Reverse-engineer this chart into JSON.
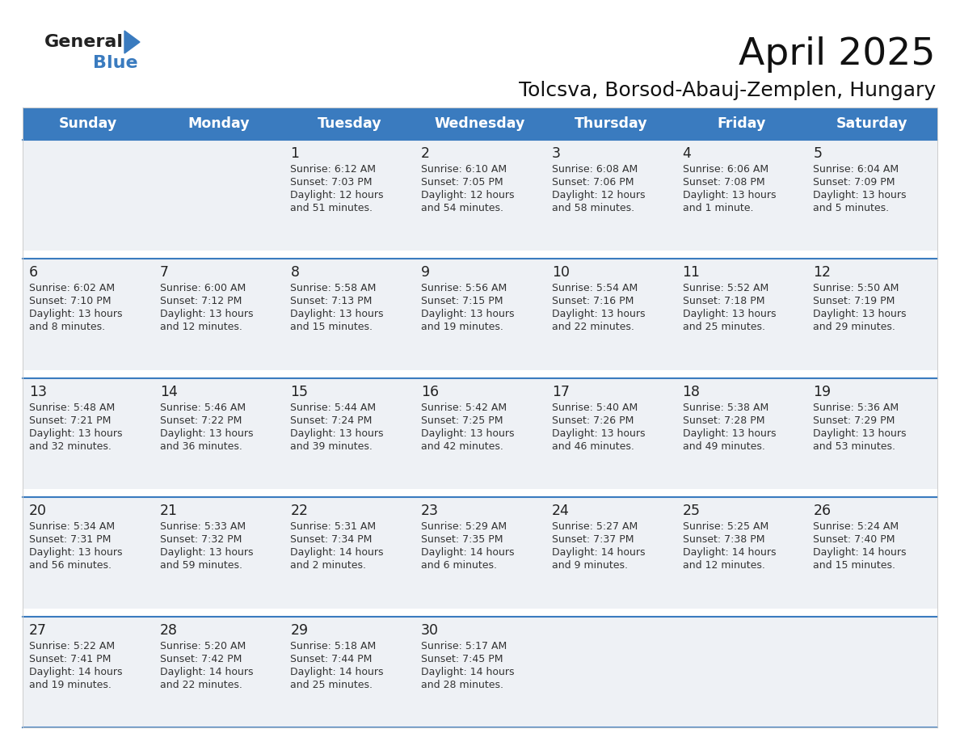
{
  "title": "April 2025",
  "subtitle": "Tolcsva, Borsod-Abauj-Zemplen, Hungary",
  "days_of_week": [
    "Sunday",
    "Monday",
    "Tuesday",
    "Wednesday",
    "Thursday",
    "Friday",
    "Saturday"
  ],
  "header_bg": "#3a7bbf",
  "header_text": "#ffffff",
  "row_bg": "#eef1f5",
  "divider_color": "#3a7bbf",
  "day_number_color": "#222222",
  "cell_text_color": "#333333",
  "calendar": [
    [
      {
        "day": "",
        "sunrise": "",
        "sunset": "",
        "daylight": ""
      },
      {
        "day": "",
        "sunrise": "",
        "sunset": "",
        "daylight": ""
      },
      {
        "day": "1",
        "sunrise": "Sunrise: 6:12 AM",
        "sunset": "Sunset: 7:03 PM",
        "daylight": "Daylight: 12 hours\nand 51 minutes."
      },
      {
        "day": "2",
        "sunrise": "Sunrise: 6:10 AM",
        "sunset": "Sunset: 7:05 PM",
        "daylight": "Daylight: 12 hours\nand 54 minutes."
      },
      {
        "day": "3",
        "sunrise": "Sunrise: 6:08 AM",
        "sunset": "Sunset: 7:06 PM",
        "daylight": "Daylight: 12 hours\nand 58 minutes."
      },
      {
        "day": "4",
        "sunrise": "Sunrise: 6:06 AM",
        "sunset": "Sunset: 7:08 PM",
        "daylight": "Daylight: 13 hours\nand 1 minute."
      },
      {
        "day": "5",
        "sunrise": "Sunrise: 6:04 AM",
        "sunset": "Sunset: 7:09 PM",
        "daylight": "Daylight: 13 hours\nand 5 minutes."
      }
    ],
    [
      {
        "day": "6",
        "sunrise": "Sunrise: 6:02 AM",
        "sunset": "Sunset: 7:10 PM",
        "daylight": "Daylight: 13 hours\nand 8 minutes."
      },
      {
        "day": "7",
        "sunrise": "Sunrise: 6:00 AM",
        "sunset": "Sunset: 7:12 PM",
        "daylight": "Daylight: 13 hours\nand 12 minutes."
      },
      {
        "day": "8",
        "sunrise": "Sunrise: 5:58 AM",
        "sunset": "Sunset: 7:13 PM",
        "daylight": "Daylight: 13 hours\nand 15 minutes."
      },
      {
        "day": "9",
        "sunrise": "Sunrise: 5:56 AM",
        "sunset": "Sunset: 7:15 PM",
        "daylight": "Daylight: 13 hours\nand 19 minutes."
      },
      {
        "day": "10",
        "sunrise": "Sunrise: 5:54 AM",
        "sunset": "Sunset: 7:16 PM",
        "daylight": "Daylight: 13 hours\nand 22 minutes."
      },
      {
        "day": "11",
        "sunrise": "Sunrise: 5:52 AM",
        "sunset": "Sunset: 7:18 PM",
        "daylight": "Daylight: 13 hours\nand 25 minutes."
      },
      {
        "day": "12",
        "sunrise": "Sunrise: 5:50 AM",
        "sunset": "Sunset: 7:19 PM",
        "daylight": "Daylight: 13 hours\nand 29 minutes."
      }
    ],
    [
      {
        "day": "13",
        "sunrise": "Sunrise: 5:48 AM",
        "sunset": "Sunset: 7:21 PM",
        "daylight": "Daylight: 13 hours\nand 32 minutes."
      },
      {
        "day": "14",
        "sunrise": "Sunrise: 5:46 AM",
        "sunset": "Sunset: 7:22 PM",
        "daylight": "Daylight: 13 hours\nand 36 minutes."
      },
      {
        "day": "15",
        "sunrise": "Sunrise: 5:44 AM",
        "sunset": "Sunset: 7:24 PM",
        "daylight": "Daylight: 13 hours\nand 39 minutes."
      },
      {
        "day": "16",
        "sunrise": "Sunrise: 5:42 AM",
        "sunset": "Sunset: 7:25 PM",
        "daylight": "Daylight: 13 hours\nand 42 minutes."
      },
      {
        "day": "17",
        "sunrise": "Sunrise: 5:40 AM",
        "sunset": "Sunset: 7:26 PM",
        "daylight": "Daylight: 13 hours\nand 46 minutes."
      },
      {
        "day": "18",
        "sunrise": "Sunrise: 5:38 AM",
        "sunset": "Sunset: 7:28 PM",
        "daylight": "Daylight: 13 hours\nand 49 minutes."
      },
      {
        "day": "19",
        "sunrise": "Sunrise: 5:36 AM",
        "sunset": "Sunset: 7:29 PM",
        "daylight": "Daylight: 13 hours\nand 53 minutes."
      }
    ],
    [
      {
        "day": "20",
        "sunrise": "Sunrise: 5:34 AM",
        "sunset": "Sunset: 7:31 PM",
        "daylight": "Daylight: 13 hours\nand 56 minutes."
      },
      {
        "day": "21",
        "sunrise": "Sunrise: 5:33 AM",
        "sunset": "Sunset: 7:32 PM",
        "daylight": "Daylight: 13 hours\nand 59 minutes."
      },
      {
        "day": "22",
        "sunrise": "Sunrise: 5:31 AM",
        "sunset": "Sunset: 7:34 PM",
        "daylight": "Daylight: 14 hours\nand 2 minutes."
      },
      {
        "day": "23",
        "sunrise": "Sunrise: 5:29 AM",
        "sunset": "Sunset: 7:35 PM",
        "daylight": "Daylight: 14 hours\nand 6 minutes."
      },
      {
        "day": "24",
        "sunrise": "Sunrise: 5:27 AM",
        "sunset": "Sunset: 7:37 PM",
        "daylight": "Daylight: 14 hours\nand 9 minutes."
      },
      {
        "day": "25",
        "sunrise": "Sunrise: 5:25 AM",
        "sunset": "Sunset: 7:38 PM",
        "daylight": "Daylight: 14 hours\nand 12 minutes."
      },
      {
        "day": "26",
        "sunrise": "Sunrise: 5:24 AM",
        "sunset": "Sunset: 7:40 PM",
        "daylight": "Daylight: 14 hours\nand 15 minutes."
      }
    ],
    [
      {
        "day": "27",
        "sunrise": "Sunrise: 5:22 AM",
        "sunset": "Sunset: 7:41 PM",
        "daylight": "Daylight: 14 hours\nand 19 minutes."
      },
      {
        "day": "28",
        "sunrise": "Sunrise: 5:20 AM",
        "sunset": "Sunset: 7:42 PM",
        "daylight": "Daylight: 14 hours\nand 22 minutes."
      },
      {
        "day": "29",
        "sunrise": "Sunrise: 5:18 AM",
        "sunset": "Sunset: 7:44 PM",
        "daylight": "Daylight: 14 hours\nand 25 minutes."
      },
      {
        "day": "30",
        "sunrise": "Sunrise: 5:17 AM",
        "sunset": "Sunset: 7:45 PM",
        "daylight": "Daylight: 14 hours\nand 28 minutes."
      },
      {
        "day": "",
        "sunrise": "",
        "sunset": "",
        "daylight": ""
      },
      {
        "day": "",
        "sunrise": "",
        "sunset": "",
        "daylight": ""
      },
      {
        "day": "",
        "sunrise": "",
        "sunset": "",
        "daylight": ""
      }
    ]
  ]
}
